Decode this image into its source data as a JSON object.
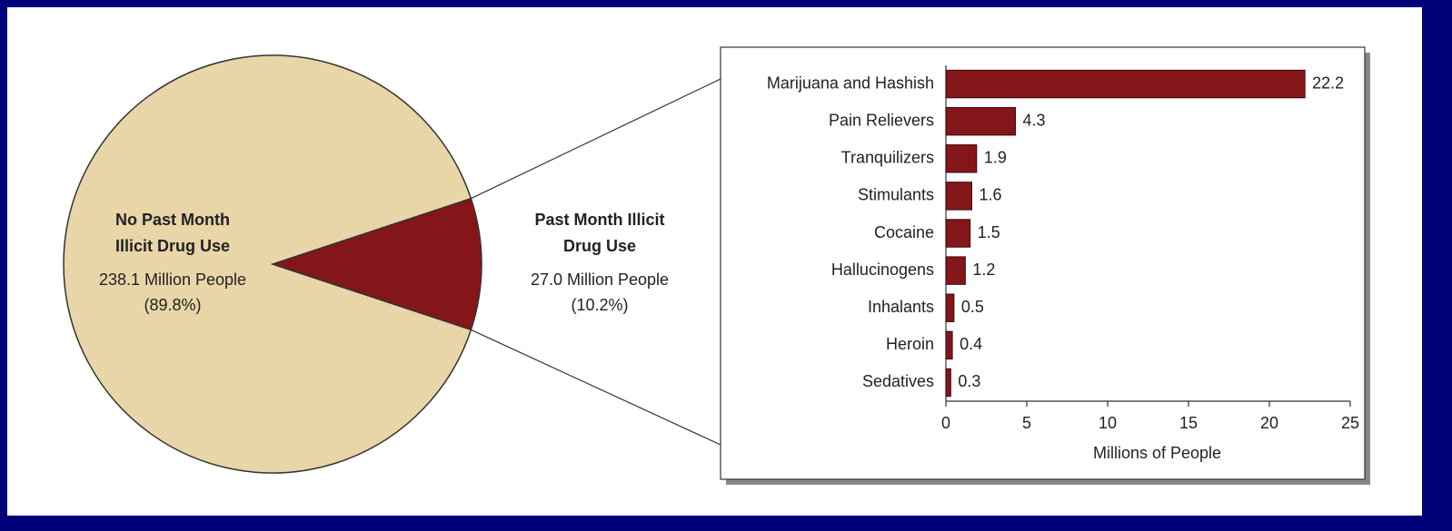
{
  "chart_data": [
    {
      "type": "pie",
      "categories": [
        "No Past Month Illicit Drug Use",
        "Past Month Illicit Drug Use"
      ],
      "values": [
        238.1,
        27.0
      ],
      "value_labels": [
        "238.1 Million People",
        "27.0 Million People"
      ],
      "share_labels": [
        "(89.8%)",
        "(10.2%)"
      ],
      "colors": [
        "#e8d5a8",
        "#84161a"
      ]
    },
    {
      "type": "bar",
      "orientation": "horizontal",
      "categories": [
        "Marijuana and Hashish",
        "Pain Relievers",
        "Tranquilizers",
        "Stimulants",
        "Cocaine",
        "Hallucinogens",
        "Inhalants",
        "Heroin",
        "Sedatives"
      ],
      "values": [
        22.2,
        4.3,
        1.9,
        1.6,
        1.5,
        1.2,
        0.5,
        0.4,
        0.3
      ],
      "color": "#84161a",
      "xlim": [
        0,
        25
      ],
      "xticks": [
        0,
        5,
        10,
        15,
        20,
        25
      ],
      "xlabel": "Millions of People"
    }
  ]
}
